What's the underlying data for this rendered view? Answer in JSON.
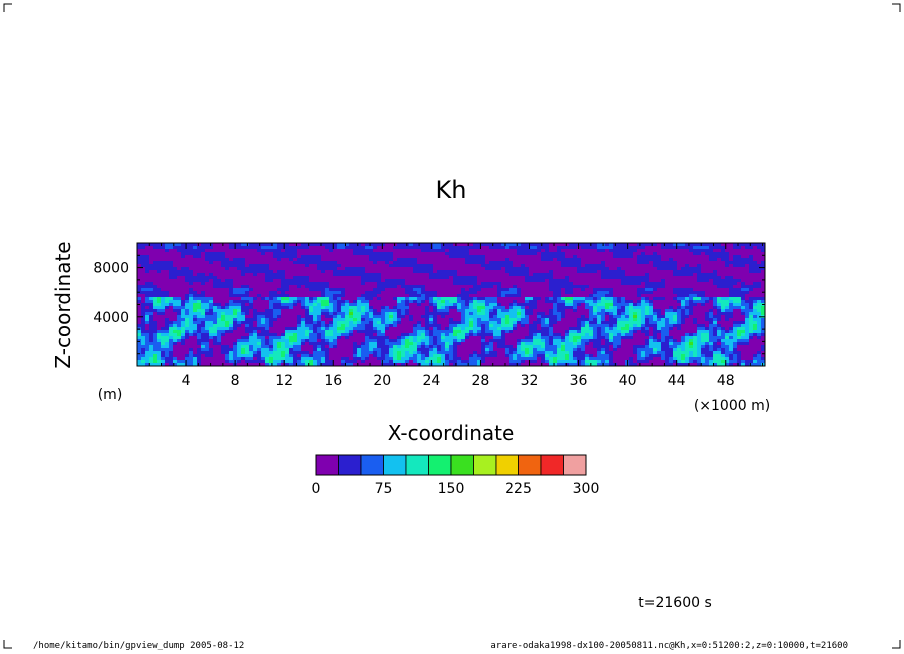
{
  "chart_data": {
    "type": "heatmap",
    "title": "Kh",
    "xlabel": "X-coordinate",
    "ylabel": "Z-coordinate",
    "x_unit": "(×1000 m)",
    "y_unit": "(m)",
    "xlim": [
      0,
      51.2
    ],
    "ylim": [
      0,
      10000
    ],
    "x_ticks": [
      "4",
      "8",
      "12",
      "16",
      "20",
      "24",
      "28",
      "32",
      "36",
      "40",
      "44",
      "48"
    ],
    "y_ticks": [
      "4000",
      "8000"
    ],
    "colorbar": {
      "min": 0,
      "max": 300,
      "step": 25,
      "tick_labels": [
        "0",
        "75",
        "150",
        "225",
        "300"
      ],
      "colors": [
        "#7f00af",
        "#2b1fcf",
        "#1a5ef0",
        "#13c1f0",
        "#14e8be",
        "#14f070",
        "#3ae020",
        "#a8f020",
        "#f0d000",
        "#f06410",
        "#f02828",
        "#f0a0a0"
      ]
    },
    "field_description_levels": [
      "upper band 6000-10000 m mostly 0-25 with 25-50 streaks",
      "lower band 0-6000 m mostly 25-75 with 75-150 filaments"
    ]
  },
  "annotation": {
    "time_label": "t=21600 s"
  },
  "footer": {
    "left": "/home/kitamo/bin/gpview_dump  2005-08-12",
    "right": "arare-odaka1998-dx100-20050811.nc@Kh,x=0:51200:2,z=0:10000,t=21600"
  },
  "colors": {
    "frame": "#000000",
    "background": "#ffffff"
  }
}
